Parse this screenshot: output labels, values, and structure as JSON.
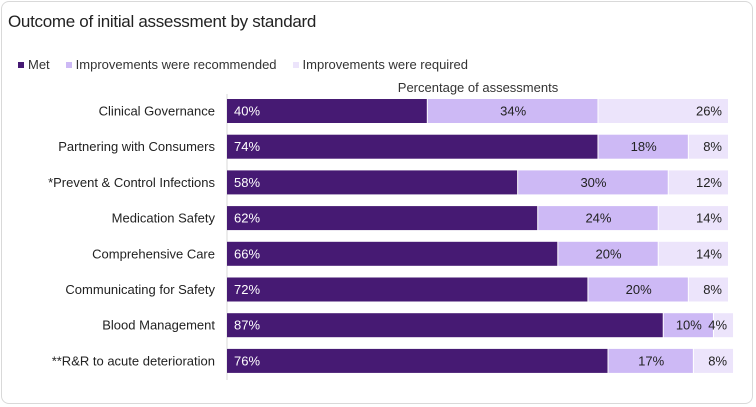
{
  "chart_data": {
    "type": "bar",
    "orientation": "horizontal",
    "stacked": true,
    "title": "Outcome of initial assessment by standard",
    "xlabel": "Percentage of assessments",
    "xlim": [
      0,
      100
    ],
    "grid": false,
    "legend_placement": "top-left",
    "categories": [
      "Clinical Governance",
      "Partnering with Consumers",
      "*Prevent & Control Infections",
      "Medication Safety",
      "Comprehensive Care",
      "Communicating for Safety",
      "Blood Management",
      "**R&R to acute deterioration"
    ],
    "series": [
      {
        "name": "Met",
        "color": "#461a73",
        "values": [
          40,
          74,
          58,
          62,
          66,
          72,
          87,
          76
        ],
        "labels": [
          "40%",
          "74%",
          "58%",
          "62%",
          "66%",
          "72%",
          "87%",
          "76%"
        ]
      },
      {
        "name": "Improvements were recommended",
        "color": "#cdb9f5",
        "values": [
          34,
          18,
          30,
          24,
          20,
          20,
          10,
          17
        ],
        "labels": [
          "34%",
          "18%",
          "30%",
          "24%",
          "20%",
          "20%",
          "10%",
          "17%"
        ]
      },
      {
        "name": "Improvements were required",
        "color": "#ece4fb",
        "values": [
          26,
          8,
          12,
          14,
          14,
          8,
          4,
          8
        ],
        "labels": [
          "26%",
          "8%",
          "12%",
          "14%",
          "14%",
          "8%",
          "4%",
          "8%"
        ]
      }
    ]
  }
}
